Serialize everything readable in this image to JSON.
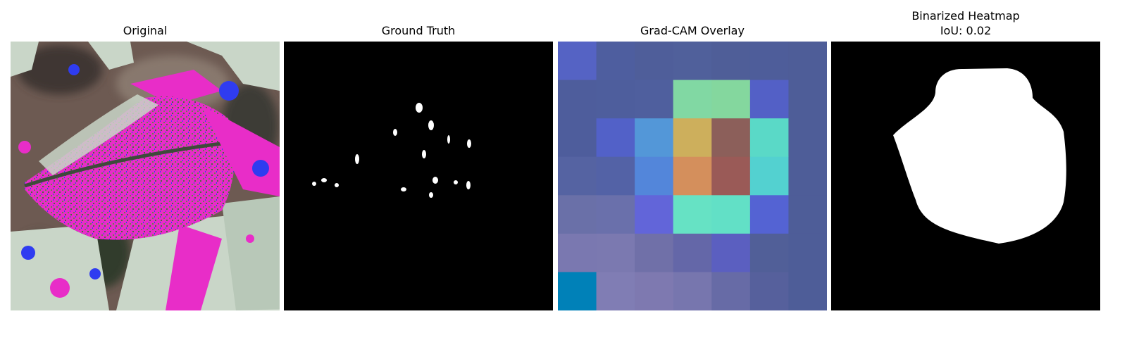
{
  "panels": [
    {
      "id": "original",
      "title": "Original"
    },
    {
      "id": "ground-truth",
      "title": "Ground Truth"
    },
    {
      "id": "gradcam",
      "title": "Grad-CAM Overlay"
    },
    {
      "id": "binarized",
      "title": "Binarized Heatmap",
      "subtitle": "IoU: 0.02"
    }
  ],
  "gradcam_grid": {
    "rows": 7,
    "cols": 7,
    "colors": [
      [
        "#5563c4",
        "#4e5e9f",
        "#4f5e9a",
        "#50609b",
        "#4f5e98",
        "#4e5d9a",
        "#4e5d98"
      ],
      [
        "#4e5d9c",
        "#4e5e9d",
        "#4f5f9e",
        "#81d8a3",
        "#84d79e",
        "#5360c6",
        "#4e5d98"
      ],
      [
        "#4e5d9c",
        "#5261c8",
        "#5397d8",
        "#cdaf5c",
        "#8c5f5a",
        "#5ad9c7",
        "#4e5d98"
      ],
      [
        "#5563a2",
        "#5362a6",
        "#5386da",
        "#d48f5c",
        "#9a5a57",
        "#53d1d0",
        "#4e5d98"
      ],
      [
        "#6a70a8",
        "#6a70ab",
        "#6265d9",
        "#66e2c4",
        "#62e0c6",
        "#5463d3",
        "#4e5d98"
      ],
      [
        "#7a78b0",
        "#7b79b0",
        "#7070a8",
        "#6467a8",
        "#5b5fc0",
        "#515f98",
        "#4e5d98"
      ],
      [
        "#0081b8",
        "#807db4",
        "#7e79b0",
        "#7776ae",
        "#676ba6",
        "#56609c",
        "#4e5d98"
      ]
    ]
  },
  "colors": {
    "mask_background": "#000000",
    "mask_foreground": "#ffffff",
    "leaf_pink": "#e82dc8",
    "blob_blue": "#2f3cf0",
    "light_green": "#c9d6c8"
  }
}
